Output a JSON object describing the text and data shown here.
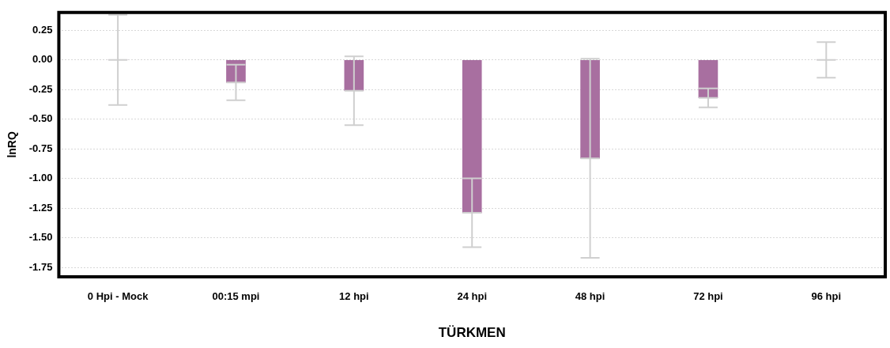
{
  "chart_data": {
    "type": "bar",
    "xlabel": "TÜRKMEN",
    "ylabel": "lnRQ",
    "categories": [
      "0 Hpi - Mock",
      "00:15 mpi",
      "12 hpi",
      "24 hpi",
      "48 hpi",
      "72 hpi",
      "96 hpi"
    ],
    "values": [
      0,
      -0.19,
      -0.26,
      -1.29,
      -0.83,
      -0.32,
      0
    ],
    "errors": [
      0.38,
      0.15,
      0.29,
      0.29,
      0.84,
      0.08,
      0.15
    ],
    "color": "#a86fa0",
    "ylim": [
      -1.83,
      0.4
    ],
    "yticks": [
      {
        "value": 0.25,
        "label": "0.25"
      },
      {
        "value": 0,
        "label": "0.00"
      },
      {
        "value": -0.25,
        "label": "-0.25"
      },
      {
        "value": -0.5,
        "label": "-0.50"
      },
      {
        "value": -0.75,
        "label": "-0.75"
      },
      {
        "value": -1,
        "label": "-1.00"
      },
      {
        "value": -1.25,
        "label": "-1.25"
      },
      {
        "value": -1.5,
        "label": "-1.50"
      },
      {
        "value": -1.75,
        "label": "-1.75"
      }
    ],
    "grid": "y",
    "legend": false
  }
}
